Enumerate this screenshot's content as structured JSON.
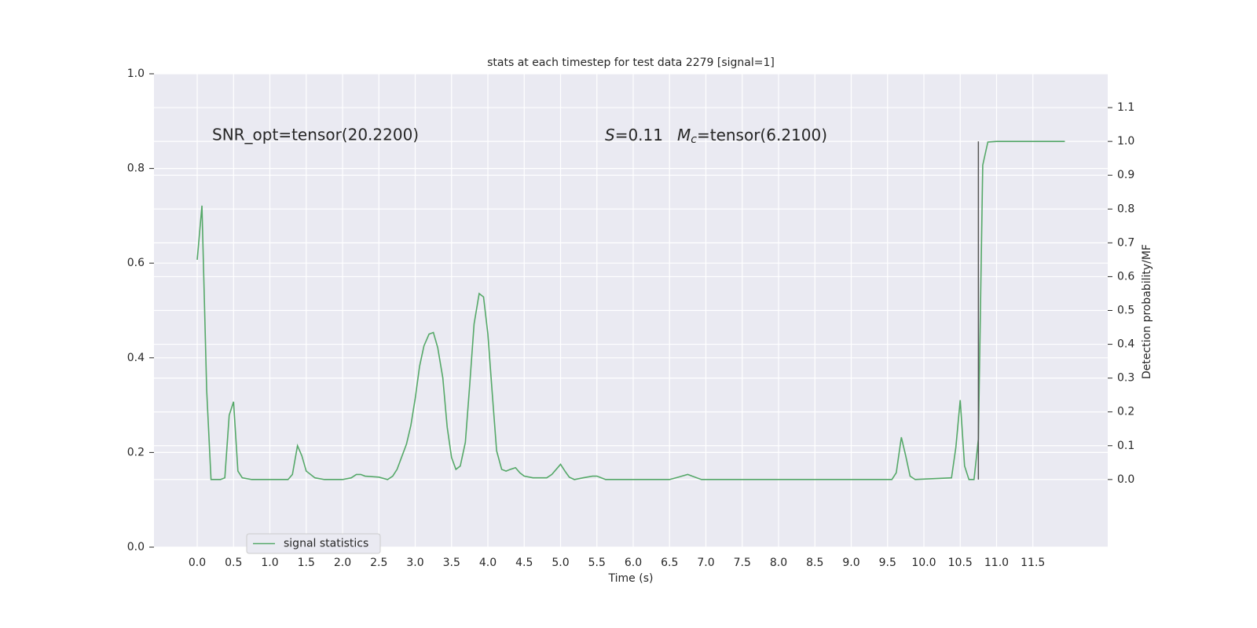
{
  "chart_data": {
    "type": "line",
    "title": "stats at each timestep for test data 2279 [signal=1]",
    "xlabel": "Time (s)",
    "y2label": "Detection probability/MF",
    "annotations": [
      {
        "text": "SNR_opt=tensor(20.2200)"
      },
      {
        "parts": [
          "S",
          "=0.11",
          "M",
          "c",
          "=tensor(6.2100)"
        ]
      }
    ],
    "x": [
      0.0,
      0.065,
      0.13,
      0.19,
      0.32,
      0.38,
      0.44,
      0.5,
      0.56,
      0.62,
      0.75,
      1.0,
      1.25,
      1.31,
      1.38,
      1.44,
      1.5,
      1.62,
      1.75,
      2.0,
      2.12,
      2.19,
      2.25,
      2.31,
      2.5,
      2.62,
      2.69,
      2.75,
      2.88,
      2.94,
      3.0,
      3.06,
      3.12,
      3.19,
      3.25,
      3.31,
      3.38,
      3.44,
      3.5,
      3.56,
      3.62,
      3.69,
      3.75,
      3.81,
      3.88,
      3.94,
      4.0,
      4.06,
      4.12,
      4.19,
      4.25,
      4.31,
      4.38,
      4.44,
      4.5,
      4.62,
      4.81,
      4.88,
      4.94,
      5.0,
      5.06,
      5.12,
      5.19,
      5.31,
      5.44,
      5.5,
      5.62,
      5.81,
      6.0,
      6.5,
      6.62,
      6.75,
      6.81,
      6.94,
      7.5,
      9.56,
      9.62,
      9.69,
      9.75,
      9.81,
      9.88,
      10.38,
      10.44,
      10.5,
      10.56,
      10.62,
      10.69,
      10.75,
      10.81,
      10.88,
      11.0,
      11.94
    ],
    "series": [
      {
        "name": "signal statistics",
        "color": "#55a868",
        "axis": "y2",
        "values": [
          0.65,
          0.81,
          0.265,
          0.0,
          0.0,
          0.005,
          0.19,
          0.23,
          0.025,
          0.005,
          0.0,
          0.0,
          0.0,
          0.015,
          0.1,
          0.07,
          0.025,
          0.005,
          0.0,
          0.0,
          0.005,
          0.015,
          0.015,
          0.01,
          0.007,
          0.0,
          0.01,
          0.03,
          0.105,
          0.16,
          0.24,
          0.335,
          0.395,
          0.43,
          0.435,
          0.39,
          0.3,
          0.155,
          0.065,
          0.03,
          0.04,
          0.11,
          0.28,
          0.46,
          0.55,
          0.54,
          0.43,
          0.255,
          0.085,
          0.03,
          0.025,
          0.03,
          0.035,
          0.02,
          0.01,
          0.005,
          0.005,
          0.015,
          0.03,
          0.045,
          0.025,
          0.007,
          0.0,
          0.005,
          0.01,
          0.01,
          0.0,
          0.0,
          0.0,
          0.0,
          0.007,
          0.015,
          0.01,
          0.0,
          0.0,
          0.0,
          0.02,
          0.125,
          0.07,
          0.01,
          0.0,
          0.005,
          0.095,
          0.235,
          0.04,
          0.0,
          0.0,
          0.12,
          0.93,
          0.998,
          1.0,
          1.0
        ]
      }
    ],
    "vline": {
      "x": 10.75,
      "ymin": 0,
      "ymax": 1,
      "color": "#555555",
      "axis": "y2"
    },
    "xlim": [
      -0.595,
      12.53
    ],
    "ylim": [
      0,
      1
    ],
    "y2lim": [
      -0.2,
      1.2
    ],
    "xticks": [
      {
        "value": 0,
        "label": "0.0"
      },
      0.5,
      {
        "value": 1,
        "label": "1.0"
      },
      1.5,
      {
        "value": 2,
        "label": "2.0"
      },
      2.5,
      {
        "value": 3,
        "label": "3.0"
      },
      3.5,
      {
        "value": 4,
        "label": "4.0"
      },
      4.5,
      {
        "value": 5,
        "label": "5.0"
      },
      5.5,
      {
        "value": 6,
        "label": "6.0"
      },
      6.5,
      {
        "value": 7,
        "label": "7.0"
      },
      7.5,
      {
        "value": 8,
        "label": "8.0"
      },
      8.5,
      {
        "value": 9,
        "label": "9.0"
      },
      9.5,
      {
        "value": 10,
        "label": "10.0"
      },
      10.5,
      {
        "value": 11,
        "label": "11.0"
      },
      11.5
    ],
    "yticks": [
      {
        "value": 0,
        "label": "0.0"
      },
      0.2,
      0.4,
      0.6,
      0.8,
      {
        "value": 1,
        "label": "1.0"
      }
    ],
    "y2ticks": [
      {
        "value": 0,
        "label": "0.0"
      },
      0.1,
      0.2,
      0.3,
      0.4,
      0.5,
      0.6,
      0.7,
      0.8,
      0.9,
      {
        "value": 1,
        "label": "1.0"
      },
      1.1
    ],
    "grid": true,
    "legend": "lower left"
  }
}
